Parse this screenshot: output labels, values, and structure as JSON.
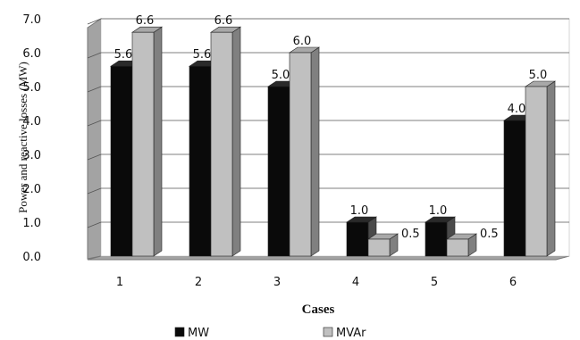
{
  "chart_data": {
    "type": "bar",
    "title": "",
    "xlabel": "Cases",
    "ylabel": "Power and reactive losses (MW)",
    "categories": [
      "1",
      "2",
      "3",
      "4",
      "5",
      "6"
    ],
    "ylim": [
      0,
      7
    ],
    "yticks": [
      "0.0",
      "1.0",
      "2.0",
      "3.0",
      "4.0",
      "5.0",
      "6.0",
      "7.0"
    ],
    "grid": true,
    "legend_position": "bottom",
    "series": [
      {
        "name": "MW",
        "color": "#0a0a0a",
        "values": [
          5.6,
          5.6,
          5.0,
          1.0,
          1.0,
          4.0
        ],
        "labels": [
          "5.6",
          "5.6",
          "5.0",
          "1.0",
          "1.0",
          "4.0"
        ]
      },
      {
        "name": "MVAr",
        "color": "#c0c0c0",
        "values": [
          6.6,
          6.6,
          6.0,
          0.5,
          0.5,
          5.0
        ],
        "labels": [
          "6.6",
          "6.6",
          "6.0",
          "0.5",
          "0.5",
          "5.0"
        ]
      }
    ]
  }
}
